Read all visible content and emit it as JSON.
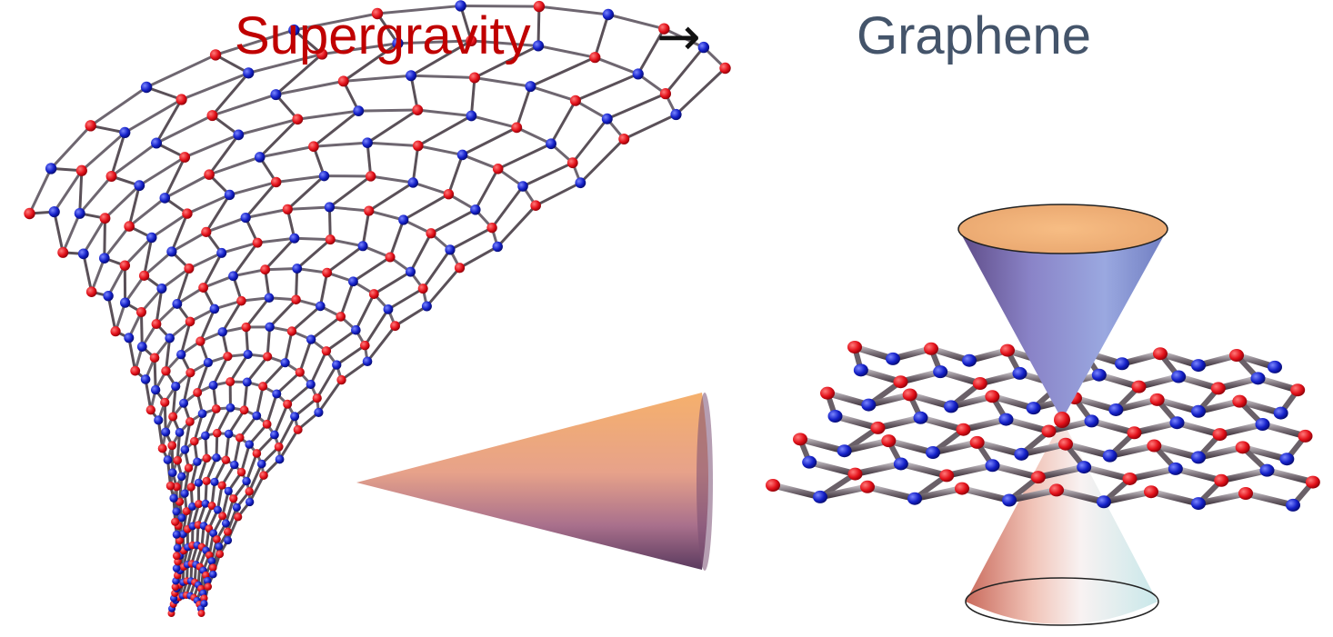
{
  "header": {
    "left_title": "Supergravity",
    "arrow": "→",
    "right_title": "Graphene"
  },
  "colors": {
    "left_title": "#c00000",
    "arrow": "#111111",
    "right_title": "#44546a",
    "atom_red": "#e3111a",
    "atom_blue": "#1420c8",
    "bond": "#6a6470"
  },
  "figures": [
    {
      "name": "curved-graphene-funnel",
      "description_icon": "funnel-lattice-icon"
    },
    {
      "name": "horizontal-cone",
      "description_icon": "cone-icon"
    },
    {
      "name": "flat-graphene-lattice",
      "description_icon": "honeycomb-lattice-icon"
    },
    {
      "name": "dirac-cone-pair",
      "description_icon": "dirac-cone-icon"
    }
  ]
}
